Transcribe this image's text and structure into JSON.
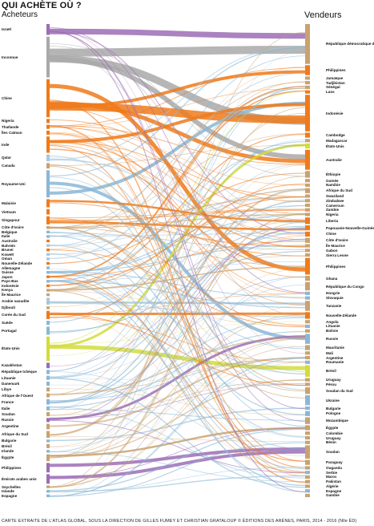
{
  "title": "QUI ACHÈTE OÙ ?",
  "buyers_header": "Acheteurs",
  "sellers_header": "Vendeurs",
  "credit": "CARTE EXTRAITE DE L'ATLAS GLOBAL, SOUS LA DIRECTION DE GILLES FUMEY ET CHRISTIAN GRATALOUP © ÉDITIONS DES ARÈNES, PARIS, 2014 - 2016 (Nlle ÉD)",
  "buyers": [
    {
      "name": "Israël",
      "color": "#9c6db5"
    },
    {
      "name": "Inconnue",
      "color": "#a9a9a9"
    },
    {
      "name": "Chine",
      "color": "#f07a1a"
    },
    {
      "name": "Nigeria",
      "color": "#f07a1a"
    },
    {
      "name": "Thaïlande",
      "color": "#f07a1a"
    },
    {
      "name": "Îles Caïman",
      "color": "#f07a1a"
    },
    {
      "name": "Inde",
      "color": "#f07a1a"
    },
    {
      "name": "Qatar",
      "color": "#a9c8dc"
    },
    {
      "name": "Canada",
      "color": "#c9a26e"
    },
    {
      "name": "Royaume-Uni",
      "color": "#8bb7d6"
    },
    {
      "name": "Malaisie",
      "color": "#f07a1a"
    },
    {
      "name": "Vietnam",
      "color": "#f07a1a"
    },
    {
      "name": "Singapour",
      "color": "#f07a1a"
    },
    {
      "name": "Côte d'Ivoire",
      "color": "#c9a26e"
    },
    {
      "name": "Belgique",
      "color": "#8bb7d6"
    },
    {
      "name": "Italie",
      "color": "#8bb7d6"
    },
    {
      "name": "Australie",
      "color": "#f07a1a"
    },
    {
      "name": "Bahreïn",
      "color": "#a9c8dc"
    },
    {
      "name": "Brunei",
      "color": "#f07a1a"
    },
    {
      "name": "Koweït",
      "color": "#a9c8dc"
    },
    {
      "name": "Oman",
      "color": "#a9c8dc"
    },
    {
      "name": "Nouvelle-Zélande",
      "color": "#f07a1a"
    },
    {
      "name": "Allemagne",
      "color": "#8bb7d6"
    },
    {
      "name": "Suisse",
      "color": "#8bb7d6"
    },
    {
      "name": "Japon",
      "color": "#f07a1a"
    },
    {
      "name": "Pays-Bas",
      "color": "#8bb7d6"
    },
    {
      "name": "Indonésie",
      "color": "#f07a1a"
    },
    {
      "name": "Kenya",
      "color": "#c9a26e"
    },
    {
      "name": "Île Maurice",
      "color": "#c9a26e"
    },
    {
      "name": "Arabie saoudite",
      "color": "#a9c8dc"
    },
    {
      "name": "Djibouti",
      "color": "#c9a26e"
    },
    {
      "name": "Corée du Sud",
      "color": "#f07a1a"
    },
    {
      "name": "Suède",
      "color": "#8bb7d6"
    },
    {
      "name": "Portugal",
      "color": "#8bb7d6"
    },
    {
      "name": "États-Unis",
      "color": "#d2dc3c"
    },
    {
      "name": "Kazakhstan",
      "color": "#9c6db5"
    },
    {
      "name": "République tchèque",
      "color": "#8bb7d6"
    },
    {
      "name": "Lituanie",
      "color": "#8bb7d6"
    },
    {
      "name": "Danemark",
      "color": "#8bb7d6"
    },
    {
      "name": "Libye",
      "color": "#c9a26e"
    },
    {
      "name": "Afrique de l'Ouest",
      "color": "#c9a26e"
    },
    {
      "name": "France",
      "color": "#8bb7d6"
    },
    {
      "name": "Italie",
      "color": "#8bb7d6"
    },
    {
      "name": "Soudan",
      "color": "#c9a26e"
    },
    {
      "name": "Russie",
      "color": "#9c6db5"
    },
    {
      "name": "Argentine",
      "color": "#c9a26e"
    },
    {
      "name": "Afrique du Sud",
      "color": "#c9a26e"
    },
    {
      "name": "Bulgarie",
      "color": "#8bb7d6"
    },
    {
      "name": "Brésil",
      "color": "#c9a26e"
    },
    {
      "name": "Irlande",
      "color": "#8bb7d6"
    },
    {
      "name": "Égypte",
      "color": "#c9a26e"
    },
    {
      "name": "Philippines",
      "color": "#9c6db5"
    },
    {
      "name": "Émirats arabes unis",
      "color": "#9c6db5"
    },
    {
      "name": "Seychelles",
      "color": "#c9a26e"
    },
    {
      "name": "Islande",
      "color": "#8bb7d6"
    },
    {
      "name": "Espagne",
      "color": "#8bb7d6"
    }
  ],
  "sellers": [
    {
      "name": "République démocratique du Congo",
      "color": "#c9a26e"
    },
    {
      "name": "Philippines",
      "color": "#f07a1a"
    },
    {
      "name": "Jamaïque",
      "color": "#c9a26e"
    },
    {
      "name": "Tadjikistan",
      "color": "#c9a26e"
    },
    {
      "name": "Sénégal",
      "color": "#c9a26e"
    },
    {
      "name": "Laos",
      "color": "#f07a1a"
    },
    {
      "name": "Indonésie",
      "color": "#f07a1a"
    },
    {
      "name": "Cambodge",
      "color": "#f07a1a"
    },
    {
      "name": "Madagascar",
      "color": "#c9a26e"
    },
    {
      "name": "États-Unis",
      "color": "#d2dc3c"
    },
    {
      "name": "Australie",
      "color": "#f07a1a"
    },
    {
      "name": "Éthiopie",
      "color": "#c9a26e"
    },
    {
      "name": "Guinée",
      "color": "#c9a26e"
    },
    {
      "name": "Namibie",
      "color": "#c9a26e"
    },
    {
      "name": "Afrique du Sud",
      "color": "#c9a26e"
    },
    {
      "name": "Swaziland",
      "color": "#c9a26e"
    },
    {
      "name": "Zimbabwe",
      "color": "#c9a26e"
    },
    {
      "name": "Cameroun",
      "color": "#c9a26e"
    },
    {
      "name": "Zambie",
      "color": "#c9a26e"
    },
    {
      "name": "Nigeria",
      "color": "#c9a26e"
    },
    {
      "name": "Liberia",
      "color": "#f07a1a"
    },
    {
      "name": "Papouasie-Nouvelle-Guinée",
      "color": "#f07a1a"
    },
    {
      "name": "Chine",
      "color": "#f07a1a"
    },
    {
      "name": "Côte d'Ivoire",
      "color": "#c9a26e"
    },
    {
      "name": "Île Maurice",
      "color": "#c9a26e"
    },
    {
      "name": "Gabon",
      "color": "#c9a26e"
    },
    {
      "name": "Sierra Leone",
      "color": "#c9a26e"
    },
    {
      "name": "Philippines",
      "color": "#f07a1a"
    },
    {
      "name": "Ghana",
      "color": "#c9a26e"
    },
    {
      "name": "République du Congo",
      "color": "#c9a26e"
    },
    {
      "name": "Hongrie",
      "color": "#8bb7d6"
    },
    {
      "name": "Slovaquie",
      "color": "#8bb7d6"
    },
    {
      "name": "Tanzanie",
      "color": "#c9a26e"
    },
    {
      "name": "Nouvelle-Zélande",
      "color": "#f07a1a"
    },
    {
      "name": "Angola",
      "color": "#c9a26e"
    },
    {
      "name": "Lituanie",
      "color": "#8bb7d6"
    },
    {
      "name": "Bolivie",
      "color": "#c9a26e"
    },
    {
      "name": "Russie",
      "color": "#8bb7d6"
    },
    {
      "name": "Mauritanie",
      "color": "#c9a26e"
    },
    {
      "name": "Mali",
      "color": "#c9a26e"
    },
    {
      "name": "Argentine",
      "color": "#c9a26e"
    },
    {
      "name": "Roumanie",
      "color": "#8bb7d6"
    },
    {
      "name": "Brésil",
      "color": "#d2dc3c"
    },
    {
      "name": "Uruguay",
      "color": "#c9a26e"
    },
    {
      "name": "Pérou",
      "color": "#c9a26e"
    },
    {
      "name": "Soudan du Sud",
      "color": "#c9a26e"
    },
    {
      "name": "Ukraine",
      "color": "#8bb7d6"
    },
    {
      "name": "Bulgarie",
      "color": "#8bb7d6"
    },
    {
      "name": "Pologne",
      "color": "#8bb7d6"
    },
    {
      "name": "Mozambique",
      "color": "#c9a26e"
    },
    {
      "name": "Égypte",
      "color": "#c9a26e"
    },
    {
      "name": "Colombie",
      "color": "#c9a26e"
    },
    {
      "name": "Uruguay",
      "color": "#c9a26e"
    },
    {
      "name": "Bénin",
      "color": "#c9a26e"
    },
    {
      "name": "Soudan",
      "color": "#c9a26e"
    },
    {
      "name": "Paraguay",
      "color": "#c9a26e"
    },
    {
      "name": "Ouganda",
      "color": "#c9a26e"
    },
    {
      "name": "Serbie",
      "color": "#8bb7d6"
    },
    {
      "name": "Maroc",
      "color": "#c9a26e"
    },
    {
      "name": "Pakistan",
      "color": "#c9a26e"
    },
    {
      "name": "Algérie",
      "color": "#c9a26e"
    },
    {
      "name": "Espagne",
      "color": "#8bb7d6"
    },
    {
      "name": "Gambie",
      "color": "#c9a26e"
    }
  ]
}
